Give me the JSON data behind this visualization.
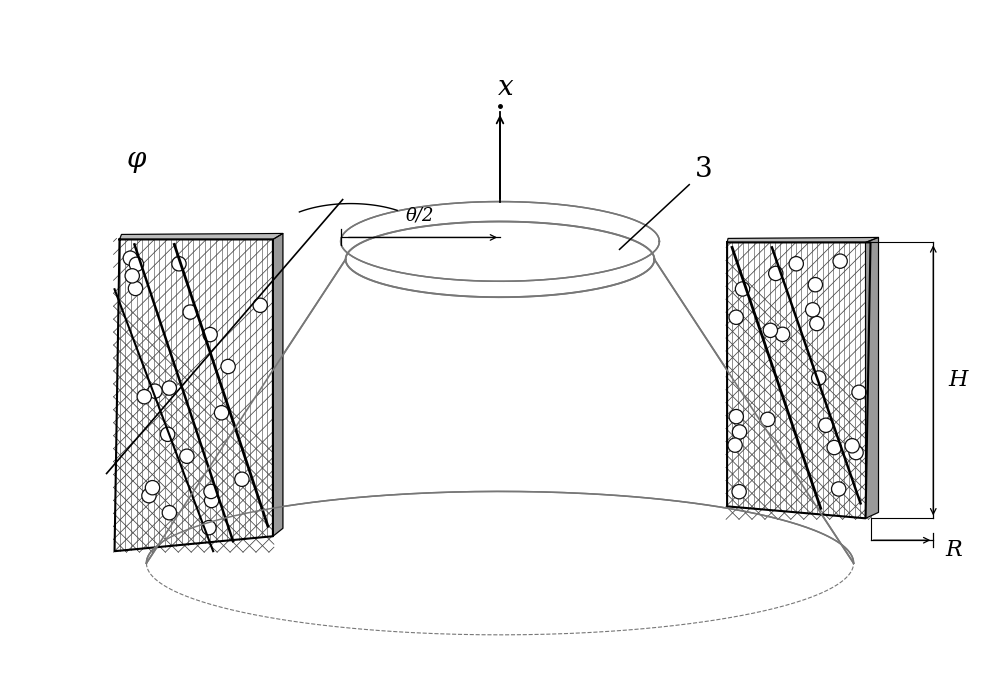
{
  "bg_color": "#ffffff",
  "line_color": "#000000",
  "gray_color": "#777777",
  "labels": {
    "x_axis": "x",
    "phi": "φ",
    "theta_half": "θ/2",
    "label_3": "3",
    "label_H": "H",
    "label_R": "R"
  },
  "figsize": [
    10.0,
    6.94
  ],
  "dpi": 100
}
